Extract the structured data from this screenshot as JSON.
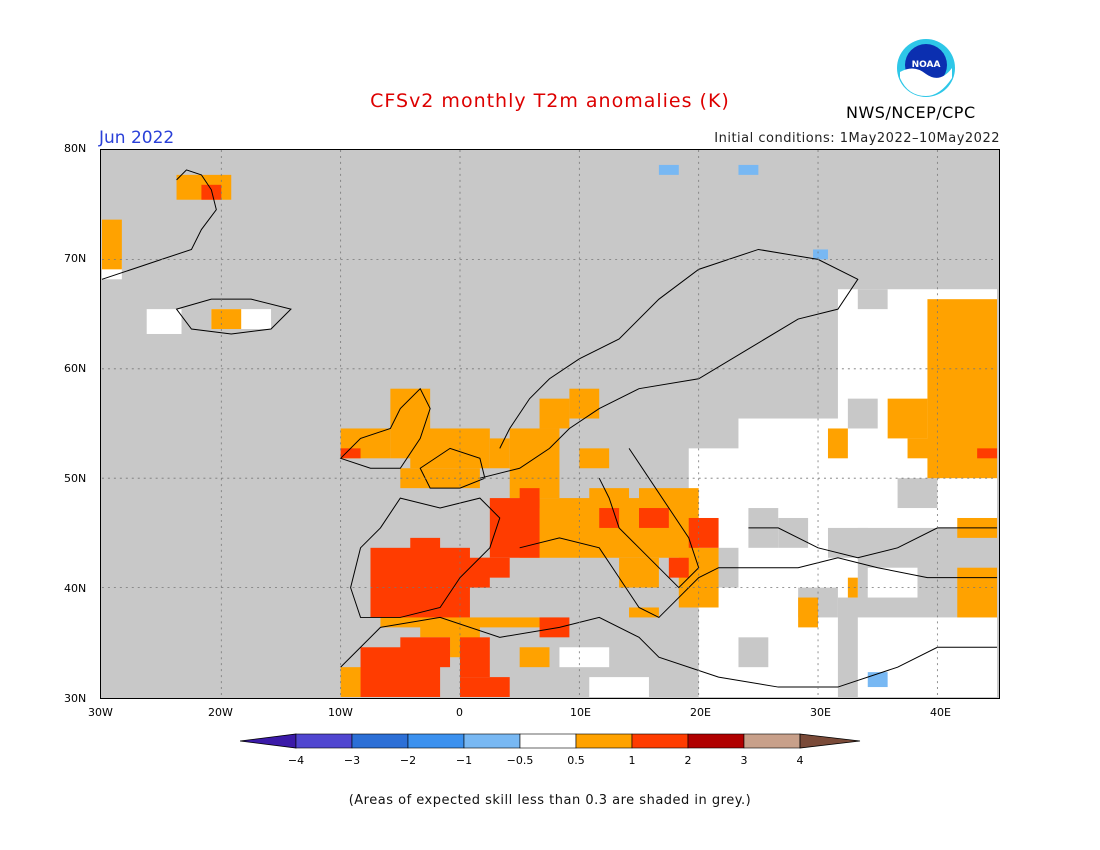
{
  "header": {
    "title": "CFSv2 monthly T2m anomalies (K)",
    "month": "Jun 2022",
    "initial_conditions": "Initial conditions: 1May2022–10May2022",
    "agency": "NWS/NCEP/CPC",
    "logo_text": "NOAA"
  },
  "map": {
    "extent": {
      "lon": [
        -30,
        45
      ],
      "lat": [
        30,
        80
      ]
    },
    "x_ticks": [
      "30W",
      "20W",
      "10W",
      "0",
      "10E",
      "20E",
      "30E",
      "40E"
    ],
    "y_ticks": [
      "80N",
      "70N",
      "60N",
      "50N",
      "40N",
      "30N"
    ],
    "grid": true,
    "land_color": "#c8c8c8"
  },
  "legend": {
    "ticks": [
      "−4",
      "−3",
      "−2",
      "−1",
      "−0.5",
      "0.5",
      "1",
      "2",
      "3",
      "4"
    ],
    "colors": [
      "#3b1aa8",
      "#5046d0",
      "#2c6fd6",
      "#3b91ef",
      "#78b8f3",
      "#ffffff",
      "#ffa200",
      "#ff3c00",
      "#b00000",
      "#c8a08a",
      "#7a4a38"
    ]
  },
  "footer": {
    "note": "(Areas of expected skill less than 0.3 are shaded in grey.)"
  }
}
